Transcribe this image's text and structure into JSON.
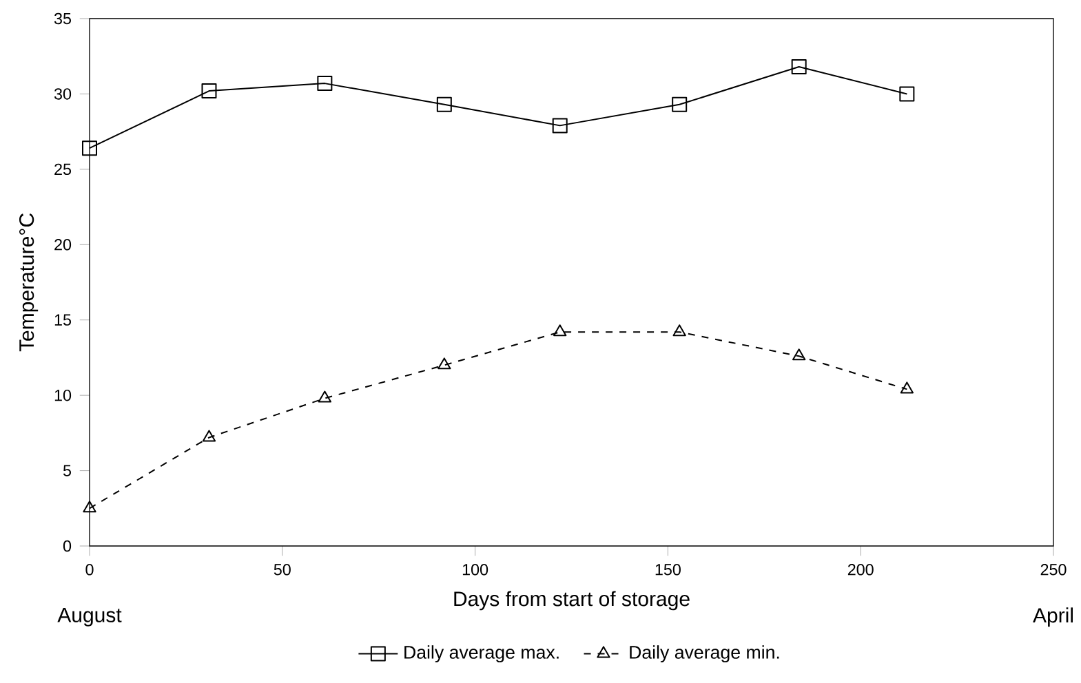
{
  "chart_data": {
    "type": "line",
    "xlabel": "Days from start of storage",
    "ylabel": "Temperature°C",
    "xlim": [
      0,
      250
    ],
    "xticks": [
      0,
      50,
      100,
      150,
      200,
      250
    ],
    "ylim": [
      0,
      35
    ],
    "yticks": [
      0,
      5,
      10,
      15,
      20,
      25,
      30,
      35
    ],
    "grid": false,
    "legend": "bottom",
    "annotations": [
      "August",
      "April"
    ],
    "series": [
      {
        "name": "Daily average max.",
        "color": "#000000",
        "marker": "square",
        "line_style": "solid",
        "x": [
          0,
          31,
          61,
          92,
          122,
          153,
          184,
          212
        ],
        "values": [
          26.4,
          30.2,
          30.7,
          29.3,
          27.9,
          29.3,
          31.8,
          30.0
        ]
      },
      {
        "name": "Daily average min.",
        "color": "#000000",
        "marker": "triangle",
        "line_style": "dashed",
        "x": [
          0,
          31,
          61,
          92,
          122,
          153,
          184,
          212
        ],
        "values": [
          2.5,
          7.2,
          9.8,
          12.0,
          14.2,
          14.2,
          12.6,
          10.4
        ]
      }
    ]
  }
}
